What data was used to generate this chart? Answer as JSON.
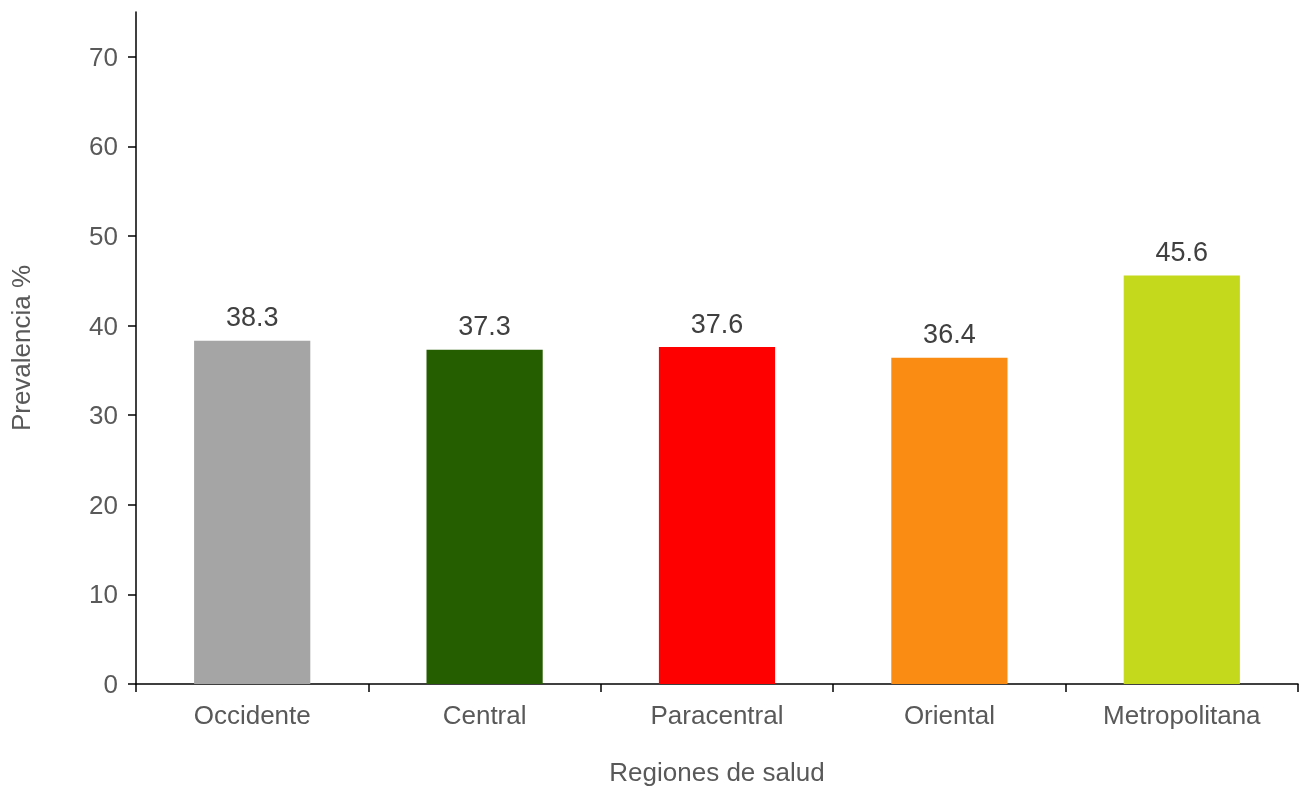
{
  "chart_data": {
    "type": "bar",
    "xlabel": "Regiones de salud",
    "ylabel": "Prevalencia %",
    "categories": [
      "Occidente",
      "Central",
      "Paracentral",
      "Oriental",
      "Metropolitana"
    ],
    "values": [
      38.3,
      37.3,
      37.6,
      36.4,
      45.6
    ],
    "colors": [
      "#a5a5a5",
      "#255e00",
      "#ff0000",
      "#fa8c14",
      "#c5d91c"
    ],
    "ylim": [
      0,
      75
    ],
    "yticks": [
      0,
      10,
      20,
      30,
      40,
      50,
      60,
      70
    ],
    "data_labels": true,
    "grid": false
  }
}
